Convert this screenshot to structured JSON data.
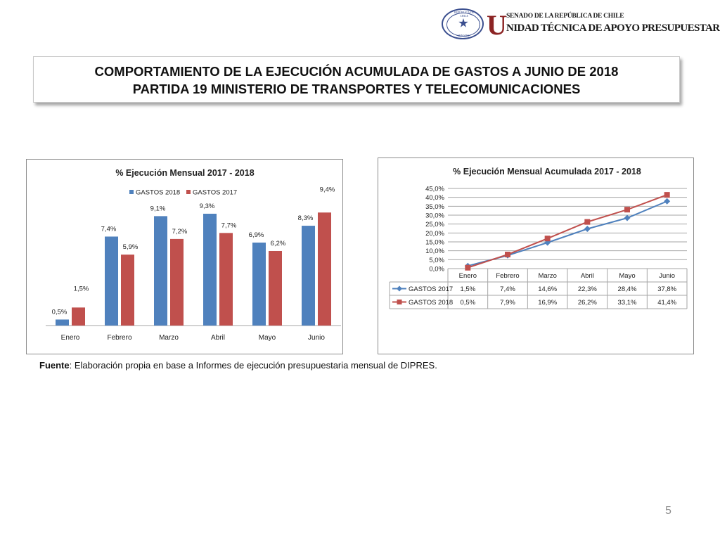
{
  "header": {
    "logo_u": "U",
    "logo_line1": "SENADO DE LA REPÚBLICA DE CHILE",
    "logo_line2": "NIDAD TÉCNICA DE APOYO PRESUPUESTARIO",
    "seal_top": "REPÚBLICA DE CHILE",
    "seal_bottom": "SENADO"
  },
  "title": {
    "line1": "COMPORTAMIENTO DE LA EJECUCIÓN ACUMULADA DE GASTOS A JUNIO DE 2018",
    "line2": "PARTIDA 19 MINISTERIO DE TRANSPORTES Y TELECOMUNICACIONES"
  },
  "colors": {
    "blue": "#4f81bd",
    "red": "#c0504d",
    "grid": "#a6a6a6",
    "seal": "#3b4f8f",
    "brand_red": "#8c2424"
  },
  "chart_data": [
    {
      "type": "bar",
      "title": "% Ejecución Mensual 2017 - 2018",
      "categories": [
        "Enero",
        "Febrero",
        "Marzo",
        "Abril",
        "Mayo",
        "Junio"
      ],
      "series": [
        {
          "name": "GASTOS 2018",
          "color": "#4f81bd",
          "values": [
            0.5,
            7.4,
            9.1,
            9.3,
            6.9,
            8.3
          ],
          "labels": [
            "0,5%",
            "7,4%",
            "9,1%",
            "9,3%",
            "6,9%",
            "8,3%"
          ]
        },
        {
          "name": "GASTOS 2017",
          "color": "#c0504d",
          "values": [
            1.5,
            5.9,
            7.2,
            7.7,
            6.2,
            9.4
          ],
          "labels": [
            "1,5%",
            "5,9%",
            "7,2%",
            "7,7%",
            "6,2%",
            "9,4%"
          ]
        }
      ],
      "ylim": [
        0,
        10
      ],
      "legend": "top",
      "grid": false
    },
    {
      "type": "line",
      "title": "% Ejecución Mensual Acumulada 2017 - 2018",
      "categories": [
        "Enero",
        "Febrero",
        "Marzo",
        "Abril",
        "Mayo",
        "Junio"
      ],
      "y_ticks": [
        "0,0%",
        "5,0%",
        "10,0%",
        "15,0%",
        "20,0%",
        "25,0%",
        "30,0%",
        "35,0%",
        "40,0%",
        "45,0%"
      ],
      "ylim": [
        0,
        45
      ],
      "grid": true,
      "legend": "data-table",
      "series": [
        {
          "name": "GASTOS 2017",
          "color": "#4f81bd",
          "marker": "diamond",
          "values": [
            1.5,
            7.4,
            14.6,
            22.3,
            28.4,
            37.8
          ],
          "labels": [
            "1,5%",
            "7,4%",
            "14,6%",
            "22,3%",
            "28,4%",
            "37,8%"
          ]
        },
        {
          "name": "GASTOS 2018",
          "color": "#c0504d",
          "marker": "square",
          "values": [
            0.5,
            7.9,
            16.9,
            26.2,
            33.1,
            41.4
          ],
          "labels": [
            "0,5%",
            "7,9%",
            "16,9%",
            "26,2%",
            "33,1%",
            "41,4%"
          ]
        }
      ]
    }
  ],
  "source": {
    "label": "Fuente",
    "text": ": Elaboración propia en base  a Informes de ejecución presupuestaria mensual de DIPRES."
  },
  "page_number": "5"
}
